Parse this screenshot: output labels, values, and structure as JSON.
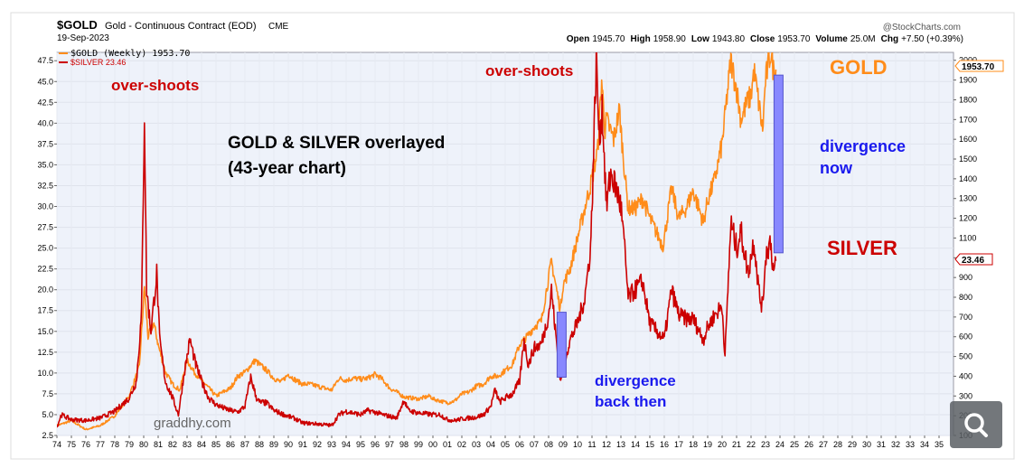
{
  "header": {
    "symbol": "$GOLD",
    "description": "Gold - Continuous Contract (EOD)",
    "exchange": "CME",
    "date": "19-Sep-2023",
    "watermark": "@StockCharts.com",
    "ohlc": [
      {
        "label": "Open",
        "value": "1945.70"
      },
      {
        "label": "High",
        "value": "1958.90"
      },
      {
        "label": "Low",
        "value": "1943.80"
      },
      {
        "label": "Close",
        "value": "1953.70"
      },
      {
        "label": "Volume",
        "value": "25.0M"
      },
      {
        "label": "Chg",
        "value": "+7.50 (+0.39%)"
      }
    ]
  },
  "legend": {
    "gold": "$GOLD (Weekly) 1953.70",
    "silver": "$SILVER 23.46"
  },
  "annotations": {
    "overshoots_left": "over-shoots",
    "overshoots_right": "over-shoots",
    "title_line1": "GOLD & SILVER overlayed",
    "title_line2": "(43-year chart)",
    "gold_label": "GOLD",
    "silver_label": "SILVER",
    "div_now_1": "divergence",
    "div_now_2": "now",
    "div_then_1": "divergence",
    "div_then_2": "back then",
    "credit": "graddhy.com"
  },
  "colors": {
    "gold": "#ff8c1a",
    "silver": "#cc0000",
    "annotation_red": "#cc0000",
    "annotation_blue": "#1a1aee",
    "divergence_bar": "#8888ff"
  },
  "icons": {
    "zoom": "magnifier-icon"
  },
  "chart_data": {
    "type": "line",
    "x_tick_labels": [
      "74",
      "75",
      "76",
      "77",
      "78",
      "79",
      "80",
      "81",
      "82",
      "83",
      "84",
      "85",
      "86",
      "87",
      "88",
      "89",
      "90",
      "91",
      "92",
      "93",
      "94",
      "95",
      "96",
      "97",
      "98",
      "99",
      "00",
      "01",
      "02",
      "03",
      "04",
      "05",
      "06",
      "07",
      "08",
      "09",
      "10",
      "11",
      "12",
      "13",
      "14",
      "15",
      "16",
      "17",
      "18",
      "19",
      "20",
      "21",
      "22",
      "23",
      "24",
      "25",
      "26",
      "27",
      "28",
      "29",
      "30",
      "31",
      "32",
      "33",
      "34",
      "35"
    ],
    "left_axis": {
      "series": "$SILVER",
      "ylim": [
        2.5,
        48.5
      ],
      "ticks": [
        "2.5",
        "5.0",
        "7.5",
        "10.0",
        "12.5",
        "15.0",
        "17.5",
        "20.0",
        "22.5",
        "25.0",
        "27.5",
        "30.0",
        "32.5",
        "35.0",
        "37.5",
        "40.0",
        "42.5",
        "45.0",
        "47.5"
      ]
    },
    "right_axis": {
      "series": "$GOLD",
      "ylim": [
        100,
        2040
      ],
      "ticks": [
        "100",
        "200",
        "300",
        "400",
        "500",
        "600",
        "700",
        "800",
        "900",
        "1000",
        "1100",
        "1200",
        "1300",
        "1400",
        "1500",
        "1600",
        "1700",
        "1800",
        "1900",
        "2000"
      ]
    },
    "last_values": {
      "gold": "1953.70",
      "silver": "23.46"
    },
    "series": [
      {
        "name": "$GOLD",
        "axis": "right",
        "points": [
          [
            1974.0,
            150
          ],
          [
            1975.0,
            175
          ],
          [
            1976.0,
            130
          ],
          [
            1977.0,
            150
          ],
          [
            1978.0,
            200
          ],
          [
            1979.0,
            300
          ],
          [
            1979.7,
            450
          ],
          [
            1980.05,
            850
          ],
          [
            1980.3,
            600
          ],
          [
            1980.7,
            670
          ],
          [
            1981.0,
            560
          ],
          [
            1981.5,
            420
          ],
          [
            1982.0,
            360
          ],
          [
            1982.5,
            330
          ],
          [
            1983.0,
            480
          ],
          [
            1983.5,
            420
          ],
          [
            1984.0,
            380
          ],
          [
            1984.5,
            340
          ],
          [
            1985.0,
            300
          ],
          [
            1985.5,
            320
          ],
          [
            1986.0,
            340
          ],
          [
            1986.5,
            400
          ],
          [
            1987.0,
            420
          ],
          [
            1987.7,
            480
          ],
          [
            1988.0,
            460
          ],
          [
            1988.5,
            430
          ],
          [
            1989.0,
            390
          ],
          [
            1989.5,
            370
          ],
          [
            1990.0,
            410
          ],
          [
            1990.5,
            380
          ],
          [
            1991.0,
            360
          ],
          [
            1991.5,
            360
          ],
          [
            1992.0,
            350
          ],
          [
            1992.5,
            340
          ],
          [
            1993.0,
            330
          ],
          [
            1993.5,
            390
          ],
          [
            1994.0,
            380
          ],
          [
            1994.5,
            390
          ],
          [
            1995.0,
            385
          ],
          [
            1995.5,
            390
          ],
          [
            1996.0,
            410
          ],
          [
            1996.5,
            385
          ],
          [
            1997.0,
            340
          ],
          [
            1997.5,
            320
          ],
          [
            1998.0,
            295
          ],
          [
            1998.5,
            290
          ],
          [
            1999.0,
            285
          ],
          [
            1999.8,
            300
          ],
          [
            2000.0,
            285
          ],
          [
            2000.5,
            275
          ],
          [
            2001.0,
            265
          ],
          [
            2001.5,
            275
          ],
          [
            2002.0,
            310
          ],
          [
            2002.5,
            320
          ],
          [
            2003.0,
            350
          ],
          [
            2003.5,
            360
          ],
          [
            2004.0,
            400
          ],
          [
            2004.5,
            400
          ],
          [
            2005.0,
            430
          ],
          [
            2005.5,
            460
          ],
          [
            2006.0,
            560
          ],
          [
            2006.5,
            600
          ],
          [
            2007.0,
            650
          ],
          [
            2007.5,
            680
          ],
          [
            2008.0,
            900
          ],
          [
            2008.2,
            980
          ],
          [
            2008.8,
            740
          ],
          [
            2009.0,
            860
          ],
          [
            2009.5,
            950
          ],
          [
            2010.0,
            1100
          ],
          [
            2010.5,
            1250
          ],
          [
            2011.0,
            1400
          ],
          [
            2011.4,
            1550
          ],
          [
            2011.67,
            1900
          ],
          [
            2011.9,
            1650
          ],
          [
            2012.0,
            1700
          ],
          [
            2012.5,
            1600
          ],
          [
            2012.9,
            1750
          ],
          [
            2013.0,
            1650
          ],
          [
            2013.3,
            1400
          ],
          [
            2013.5,
            1250
          ],
          [
            2014.0,
            1250
          ],
          [
            2014.5,
            1300
          ],
          [
            2015.0,
            1200
          ],
          [
            2015.9,
            1060
          ],
          [
            2016.0,
            1100
          ],
          [
            2016.5,
            1350
          ],
          [
            2017.0,
            1200
          ],
          [
            2017.5,
            1250
          ],
          [
            2018.0,
            1340
          ],
          [
            2018.7,
            1180
          ],
          [
            2019.0,
            1290
          ],
          [
            2019.5,
            1400
          ],
          [
            2020.0,
            1580
          ],
          [
            2020.6,
            2000
          ],
          [
            2021.0,
            1850
          ],
          [
            2021.3,
            1700
          ],
          [
            2021.8,
            1800
          ],
          [
            2022.0,
            1820
          ],
          [
            2022.2,
            1950
          ],
          [
            2022.6,
            1750
          ],
          [
            2022.8,
            1640
          ],
          [
            2023.0,
            1900
          ],
          [
            2023.35,
            2040
          ],
          [
            2023.55,
            1950
          ],
          [
            2023.72,
            1953.7
          ]
        ]
      },
      {
        "name": "$SILVER",
        "axis": "left",
        "points": [
          [
            1974.0,
            3.5
          ],
          [
            1974.3,
            5.0
          ],
          [
            1975.0,
            4.4
          ],
          [
            1976.0,
            4.3
          ],
          [
            1977.0,
            4.6
          ],
          [
            1978.0,
            5.4
          ],
          [
            1979.0,
            7.0
          ],
          [
            1979.5,
            9.0
          ],
          [
            1979.85,
            17.0
          ],
          [
            1980.05,
            41.5
          ],
          [
            1980.2,
            20.0
          ],
          [
            1980.5,
            15.0
          ],
          [
            1980.9,
            22.0
          ],
          [
            1981.1,
            14.0
          ],
          [
            1981.5,
            9.0
          ],
          [
            1982.0,
            7.0
          ],
          [
            1982.4,
            5.0
          ],
          [
            1982.8,
            10.0
          ],
          [
            1983.2,
            14.0
          ],
          [
            1983.6,
            11.0
          ],
          [
            1984.0,
            9.0
          ],
          [
            1984.5,
            7.0
          ],
          [
            1985.0,
            6.2
          ],
          [
            1985.5,
            5.8
          ],
          [
            1986.0,
            5.5
          ],
          [
            1986.5,
            5.3
          ],
          [
            1987.0,
            6.0
          ],
          [
            1987.4,
            9.5
          ],
          [
            1987.8,
            7.0
          ],
          [
            1988.0,
            6.5
          ],
          [
            1988.5,
            6.4
          ],
          [
            1989.0,
            5.5
          ],
          [
            1990.0,
            4.8
          ],
          [
            1990.5,
            4.5
          ],
          [
            1991.0,
            4.0
          ],
          [
            1992.0,
            3.9
          ],
          [
            1992.5,
            3.8
          ],
          [
            1993.0,
            3.7
          ],
          [
            1993.5,
            5.0
          ],
          [
            1994.0,
            5.4
          ],
          [
            1994.5,
            5.2
          ],
          [
            1995.0,
            5.0
          ],
          [
            1995.5,
            5.5
          ],
          [
            1996.0,
            5.3
          ],
          [
            1996.5,
            5.0
          ],
          [
            1997.0,
            4.8
          ],
          [
            1997.5,
            4.6
          ],
          [
            1998.0,
            6.8
          ],
          [
            1998.3,
            5.5
          ],
          [
            1999.0,
            5.2
          ],
          [
            1999.5,
            5.1
          ],
          [
            2000.0,
            5.0
          ],
          [
            2000.5,
            5.0
          ],
          [
            2001.0,
            4.4
          ],
          [
            2001.5,
            4.3
          ],
          [
            2002.0,
            4.5
          ],
          [
            2002.5,
            4.6
          ],
          [
            2003.0,
            4.7
          ],
          [
            2003.5,
            5.0
          ],
          [
            2004.0,
            6.0
          ],
          [
            2004.3,
            8.0
          ],
          [
            2004.6,
            6.5
          ],
          [
            2005.0,
            7.0
          ],
          [
            2005.5,
            7.5
          ],
          [
            2006.0,
            9.0
          ],
          [
            2006.3,
            14.0
          ],
          [
            2006.6,
            11.0
          ],
          [
            2007.0,
            13.0
          ],
          [
            2007.5,
            13.5
          ],
          [
            2008.0,
            17.0
          ],
          [
            2008.2,
            20.0
          ],
          [
            2008.8,
            9.0
          ],
          [
            2009.0,
            11.0
          ],
          [
            2009.5,
            14.0
          ],
          [
            2010.0,
            16.0
          ],
          [
            2010.5,
            19.0
          ],
          [
            2010.9,
            25.0
          ],
          [
            2011.0,
            30.0
          ],
          [
            2011.3,
            48.0
          ],
          [
            2011.5,
            38.0
          ],
          [
            2011.7,
            42.0
          ],
          [
            2012.0,
            30.0
          ],
          [
            2012.3,
            34.0
          ],
          [
            2012.7,
            32.0
          ],
          [
            2013.0,
            30.0
          ],
          [
            2013.3,
            24.0
          ],
          [
            2013.5,
            19.0
          ],
          [
            2014.0,
            20.0
          ],
          [
            2014.5,
            21.0
          ],
          [
            2015.0,
            16.0
          ],
          [
            2015.5,
            15.0
          ],
          [
            2016.0,
            14.0
          ],
          [
            2016.5,
            20.0
          ],
          [
            2017.0,
            17.0
          ],
          [
            2017.5,
            16.5
          ],
          [
            2018.0,
            16.5
          ],
          [
            2018.7,
            14.0
          ],
          [
            2019.0,
            15.5
          ],
          [
            2019.5,
            17.0
          ],
          [
            2020.0,
            18.0
          ],
          [
            2020.2,
            12.0
          ],
          [
            2020.6,
            28.0
          ],
          [
            2021.0,
            25.0
          ],
          [
            2021.3,
            27.0
          ],
          [
            2021.8,
            22.0
          ],
          [
            2022.0,
            24.0
          ],
          [
            2022.2,
            26.0
          ],
          [
            2022.6,
            19.0
          ],
          [
            2022.8,
            18.0
          ],
          [
            2023.0,
            24.0
          ],
          [
            2023.35,
            26.0
          ],
          [
            2023.55,
            22.0
          ],
          [
            2023.72,
            23.46
          ]
        ]
      }
    ],
    "divergence_markers": [
      {
        "label": "divergence back then",
        "x": 2008.9,
        "silver_range": [
          9.5,
          17.3
        ]
      },
      {
        "label": "divergence now",
        "x": 2023.9,
        "gold_range": [
          1025,
          1925
        ]
      }
    ]
  }
}
